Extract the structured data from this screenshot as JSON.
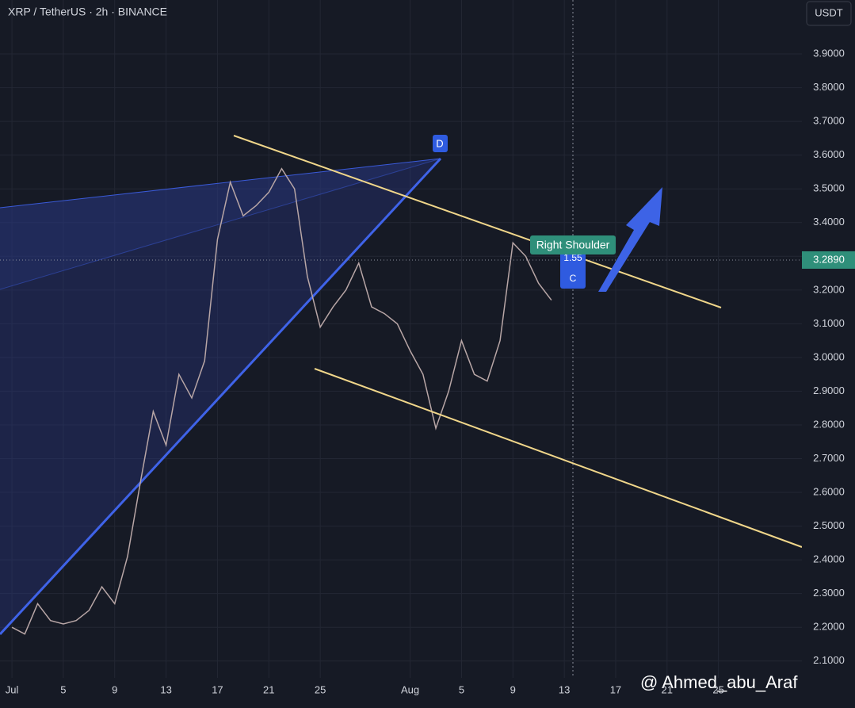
{
  "chart_data": {
    "type": "line",
    "title": "XRP / TetherUS · 2h · BINANCE",
    "currency": "USDT",
    "x": [
      1,
      2,
      3,
      4,
      5,
      6,
      7,
      8,
      9,
      10,
      11,
      12,
      13,
      14,
      15,
      16,
      17,
      18,
      19,
      20,
      21,
      22,
      23,
      24,
      25,
      26,
      27,
      28,
      29,
      30,
      31,
      32,
      33,
      34,
      35,
      36,
      37,
      38,
      39,
      40,
      41,
      42,
      43
    ],
    "series": [
      {
        "name": "XRP / TetherUS",
        "color": "#b8a6a6",
        "values": [
          2.2,
          2.18,
          2.27,
          2.22,
          2.21,
          2.22,
          2.25,
          2.32,
          2.27,
          2.41,
          2.63,
          2.84,
          2.74,
          2.95,
          2.88,
          2.99,
          3.35,
          3.52,
          3.42,
          3.45,
          3.49,
          3.56,
          3.5,
          3.24,
          3.09,
          3.15,
          3.2,
          3.28,
          3.15,
          3.13,
          3.1,
          3.02,
          2.95,
          2.79,
          2.9,
          3.05,
          2.95,
          2.93,
          3.05,
          3.34,
          3.3,
          3.22,
          3.17
        ]
      }
    ],
    "current_price": {
      "value": 3.289,
      "label": "3.2890"
    },
    "xlim": [
      0.07,
      62.5
    ],
    "ylim": [
      2.05,
      4.06
    ],
    "xticks": [
      {
        "value": 1,
        "label": "Jul"
      },
      5,
      9,
      13,
      17,
      21,
      25,
      {
        "value": 32,
        "label": "Aug"
      },
      {
        "value": 36,
        "label": "5"
      },
      {
        "value": 40,
        "label": "9"
      },
      {
        "value": 44,
        "label": "13"
      },
      {
        "value": 48,
        "label": "17"
      },
      {
        "value": 52,
        "label": "21"
      },
      {
        "value": 56,
        "label": "25"
      }
    ],
    "yticks": [
      {
        "value": 2.1,
        "label": "2.1000"
      },
      {
        "value": 2.2,
        "label": "2.2000"
      },
      {
        "value": 2.3,
        "label": "2.3000"
      },
      {
        "value": 2.4,
        "label": "2.4000"
      },
      {
        "value": 2.5,
        "label": "2.5000"
      },
      {
        "value": 2.6,
        "label": "2.6000"
      },
      {
        "value": 2.7,
        "label": "2.7000"
      },
      {
        "value": 2.8,
        "label": "2.8000"
      },
      {
        "value": 2.9,
        "label": "2.9000"
      },
      {
        "value": 3.0,
        "label": "3.0000"
      },
      {
        "value": 3.1,
        "label": "3.1000"
      },
      {
        "value": 3.2,
        "label": "3.2000"
      },
      {
        "value": 3.3,
        "label": "3.3000"
      },
      {
        "value": 3.4,
        "label": "3.4000"
      },
      {
        "value": 3.5,
        "label": "3.5000"
      },
      {
        "value": 3.6,
        "label": "3.6000"
      },
      {
        "value": 3.7,
        "label": "3.7000"
      },
      {
        "value": 3.8,
        "label": "3.8000"
      },
      {
        "value": 3.9,
        "label": "3.9000"
      }
    ],
    "grid": true,
    "annotations": [
      "D",
      "Right Shoulder",
      "1.55",
      "C"
    ],
    "watermark": "@ Ahmed_abu_Araf"
  }
}
